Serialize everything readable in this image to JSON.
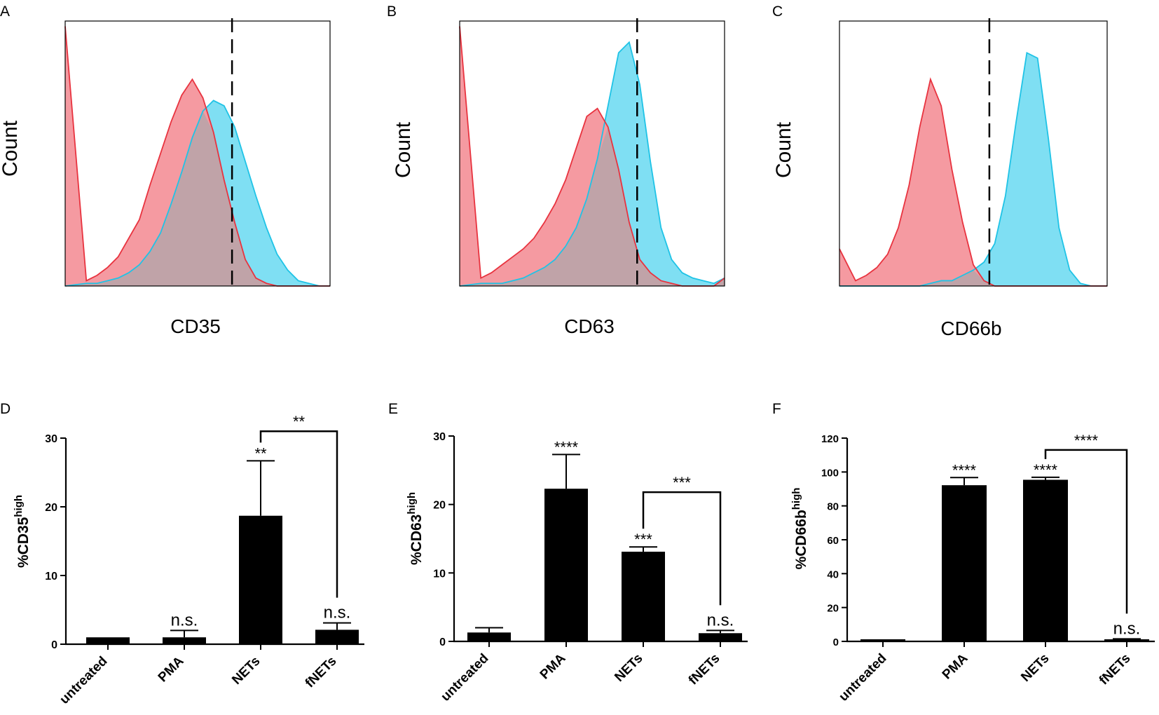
{
  "colors": {
    "unstained": "#e8333f",
    "unstained_fill": "#f59aa1",
    "stained": "#1fc3e6",
    "stained_fill": "#7fdff3",
    "overlap_fill": "#c0a3a8",
    "bar": "#000000"
  },
  "chart_data": [
    {
      "panel": "A",
      "type": "histogram",
      "xlabel": "CD35",
      "ylabel": "Count",
      "x": [
        0,
        8,
        12,
        16,
        20,
        24,
        28,
        32,
        36,
        40,
        44,
        48,
        52,
        56,
        60,
        64,
        68,
        72,
        76,
        80,
        84,
        88,
        92,
        96,
        100
      ],
      "series": [
        {
          "name": "red",
          "values": [
            98,
            2,
            4,
            7,
            11,
            18,
            25,
            38,
            50,
            62,
            72,
            78,
            71,
            58,
            40,
            24,
            10,
            3,
            1,
            0,
            0,
            0,
            0,
            0,
            0
          ]
        },
        {
          "name": "blue",
          "values": [
            0,
            1,
            1,
            2,
            3,
            5,
            8,
            13,
            20,
            31,
            43,
            56,
            66,
            70,
            68,
            60,
            47,
            34,
            22,
            12,
            6,
            2,
            1,
            0,
            0
          ]
        }
      ],
      "gate": 63
    },
    {
      "panel": "B",
      "type": "histogram",
      "xlabel": "CD63",
      "ylabel": "Count",
      "x": [
        0,
        8,
        12,
        16,
        20,
        24,
        28,
        32,
        36,
        40,
        44,
        48,
        52,
        56,
        60,
        64,
        68,
        72,
        76,
        80,
        84,
        88,
        92,
        96,
        100
      ],
      "series": [
        {
          "name": "red",
          "values": [
            98,
            3,
            5,
            8,
            11,
            14,
            18,
            24,
            31,
            40,
            52,
            64,
            67,
            60,
            44,
            24,
            10,
            5,
            2,
            1,
            0,
            0,
            0,
            0,
            3
          ]
        },
        {
          "name": "blue",
          "values": [
            0,
            1,
            1,
            1,
            2,
            3,
            5,
            7,
            10,
            15,
            22,
            33,
            48,
            68,
            88,
            92,
            76,
            47,
            22,
            10,
            5,
            3,
            2,
            1,
            3
          ]
        }
      ],
      "gate": 67
    },
    {
      "panel": "C",
      "type": "histogram",
      "xlabel": "CD66b",
      "ylabel": "Count",
      "x": [
        0,
        6,
        10,
        14,
        18,
        22,
        26,
        30,
        34,
        38,
        42,
        46,
        50,
        54,
        58,
        62,
        66,
        70,
        74,
        78,
        82,
        86,
        90,
        94,
        100
      ],
      "series": [
        {
          "name": "red",
          "values": [
            14,
            2,
            4,
            7,
            12,
            22,
            38,
            60,
            78,
            68,
            44,
            24,
            8,
            2,
            0,
            0,
            0,
            0,
            0,
            0,
            0,
            0,
            0,
            0,
            0
          ]
        },
        {
          "name": "blue",
          "values": [
            0,
            0,
            0,
            0,
            0,
            0,
            0,
            0,
            1,
            2,
            2,
            4,
            6,
            9,
            16,
            34,
            62,
            88,
            86,
            56,
            22,
            6,
            1,
            0,
            0
          ]
        }
      ],
      "gate": 56
    },
    {
      "panel": "D",
      "type": "bar",
      "ylabel_main": "%CD35",
      "ylabel_sup": "high",
      "categories": [
        "untreated",
        "PMA",
        "NETs",
        "fNETs"
      ],
      "values": [
        1,
        1,
        18.7,
        2.1
      ],
      "errors": [
        0,
        1,
        8,
        1
      ],
      "ylim": [
        0,
        30
      ],
      "yticks": [
        0,
        10,
        20,
        30
      ],
      "ytick_labels": [
        "0",
        "10",
        "20",
        "30"
      ],
      "annotations": [
        "",
        "n.s.",
        "**",
        "n.s."
      ],
      "bracket": {
        "from": 2,
        "to": 3,
        "label": "**",
        "level": 31
      }
    },
    {
      "panel": "E",
      "type": "bar",
      "ylabel_main": "%CD63",
      "ylabel_sup": "high",
      "categories": [
        "untreated",
        "PMA",
        "NETs",
        "fNETs"
      ],
      "values": [
        1.3,
        22.3,
        13.1,
        1.2
      ],
      "errors": [
        0.7,
        5,
        0.7,
        0.4
      ],
      "ylim": [
        0,
        30
      ],
      "yticks": [
        0,
        10,
        20,
        30
      ],
      "ytick_labels": [
        "0",
        "10",
        "20",
        "30"
      ],
      "annotations": [
        "",
        "****",
        "***",
        "n.s."
      ],
      "bracket": {
        "from": 2,
        "to": 3,
        "label": "***",
        "level": 21.8
      }
    },
    {
      "panel": "F",
      "type": "bar",
      "ylabel_main": "%CD66b",
      "ylabel_sup": "high",
      "categories": [
        "untreated",
        "PMA",
        "NETs",
        "fNETs"
      ],
      "values": [
        0.5,
        92.2,
        95.4,
        1.1
      ],
      "errors": [
        0.3,
        4.5,
        1.5,
        0.4
      ],
      "ylim": [
        0,
        120
      ],
      "yticks": [
        0,
        20,
        40,
        60,
        80,
        100,
        120
      ],
      "ytick_labels": [
        "0",
        "20",
        "40",
        "60",
        "80",
        "100",
        "120"
      ],
      "annotations": [
        "",
        "****",
        "****",
        "n.s."
      ],
      "bracket": {
        "from": 2,
        "to": 3,
        "label": "****",
        "level": 113
      }
    }
  ]
}
